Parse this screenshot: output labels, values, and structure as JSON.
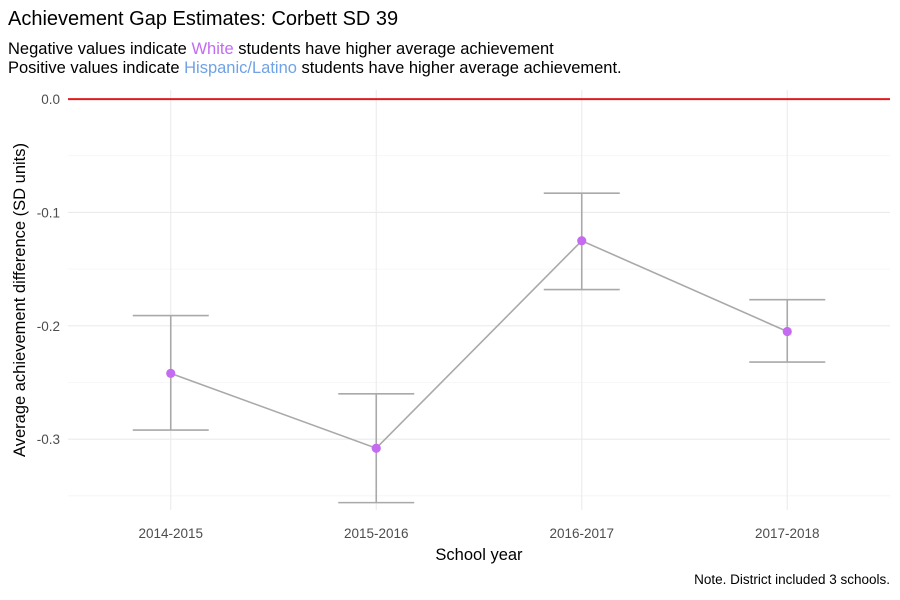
{
  "chart_data": {
    "type": "line",
    "title": "Achievement Gap Estimates: Corbett SD 39",
    "subtitle": {
      "line1": {
        "pre": "Negative values indicate ",
        "group": "White",
        "post": " students have higher average achievement"
      },
      "line2": {
        "pre": "Positive values indicate ",
        "group": "Hispanic/Latino",
        "post": " students have higher average achievement."
      }
    },
    "xlabel": "School year",
    "ylabel": "Average achievement difference (SD units)",
    "categories": [
      "2014-2015",
      "2015-2016",
      "2016-2017",
      "2017-2018"
    ],
    "values": [
      -0.242,
      -0.308,
      -0.125,
      -0.205
    ],
    "error_lower": [
      -0.292,
      -0.356,
      -0.168,
      -0.232
    ],
    "error_upper": [
      -0.191,
      -0.26,
      -0.083,
      -0.177
    ],
    "y_ticks": [
      0.0,
      -0.1,
      -0.2,
      -0.3
    ],
    "y_tick_labels": [
      "0.0",
      "-0.1",
      "-0.2",
      "-0.3"
    ],
    "ylim": [
      -0.3625,
      0.008
    ],
    "reference_line": 0.0,
    "grid": true,
    "caption": "Note. District included 3 schools.",
    "colors": {
      "point": "#c46bf2",
      "line": "#a9a9a9",
      "error_bar": "#a9a9a9",
      "reference": "#e31a1c",
      "white_label": "#c46bf2",
      "hispanic_label": "#6fa2e6"
    }
  }
}
